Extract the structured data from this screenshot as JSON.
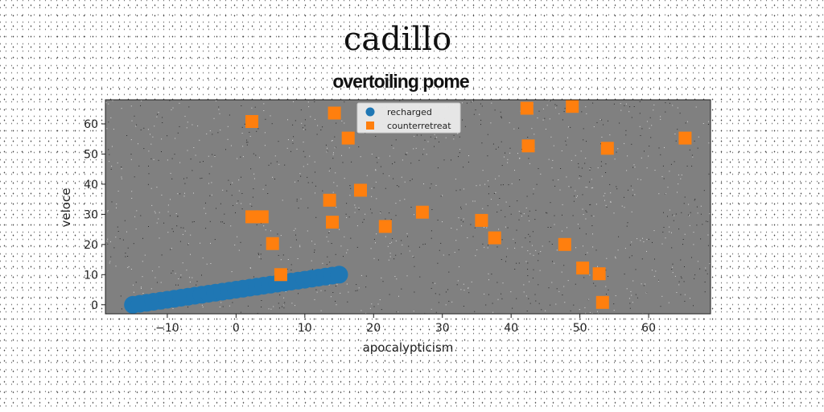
{
  "chart_data": {
    "type": "scatter",
    "title": "cadillo",
    "subtitle": "overtoiling pome",
    "xlabel": "apocalypticism",
    "ylabel": "veloce",
    "xlim": [
      -19,
      69
    ],
    "ylim": [
      -3,
      68
    ],
    "xticks": [
      -10,
      0,
      10,
      20,
      30,
      40,
      50,
      60
    ],
    "yticks": [
      0,
      10,
      20,
      30,
      40,
      50,
      60
    ],
    "plot_background": "#808080",
    "grid": false,
    "legend_position": "upper-center",
    "series": [
      {
        "name": "recharged",
        "marker": "circle",
        "color": "#1f77b4",
        "x": [
          -15.0,
          -14.0,
          -13.0,
          -12.0,
          -11.0,
          -10.0,
          -9.0,
          -8.0,
          -7.0,
          -6.0,
          -5.0,
          -4.0,
          -3.0,
          -2.0,
          -1.0,
          0.0,
          1.0,
          2.0,
          3.0,
          4.0,
          5.0,
          6.0,
          7.0,
          8.0,
          9.0,
          10.0,
          11.0,
          12.0,
          13.0,
          14.0,
          15.0
        ],
        "y": [
          0.0,
          0.33,
          0.67,
          1.0,
          1.33,
          1.67,
          2.0,
          2.33,
          2.67,
          3.0,
          3.33,
          3.67,
          4.0,
          4.33,
          4.67,
          5.0,
          5.33,
          5.67,
          6.0,
          6.33,
          6.67,
          7.0,
          7.33,
          7.67,
          8.0,
          8.33,
          8.67,
          9.0,
          9.33,
          9.67,
          10.0
        ]
      },
      {
        "name": "counterretreat",
        "marker": "square",
        "color": "#ff7f0e",
        "x": [
          2.3,
          2.3,
          3.8,
          5.3,
          6.5,
          13.6,
          14.0,
          14.3,
          16.3,
          18.1,
          21.7,
          27.1,
          35.7,
          37.6,
          42.3,
          42.5,
          47.8,
          48.9,
          50.4,
          52.8,
          53.3,
          54.0,
          65.3
        ],
        "y": [
          60.8,
          29.2,
          29.2,
          20.3,
          10.0,
          34.7,
          27.4,
          63.6,
          55.3,
          38.0,
          26.0,
          30.7,
          28.0,
          22.2,
          65.2,
          52.7,
          20.0,
          65.8,
          12.2,
          10.3,
          0.8,
          51.9,
          55.3
        ]
      }
    ]
  }
}
